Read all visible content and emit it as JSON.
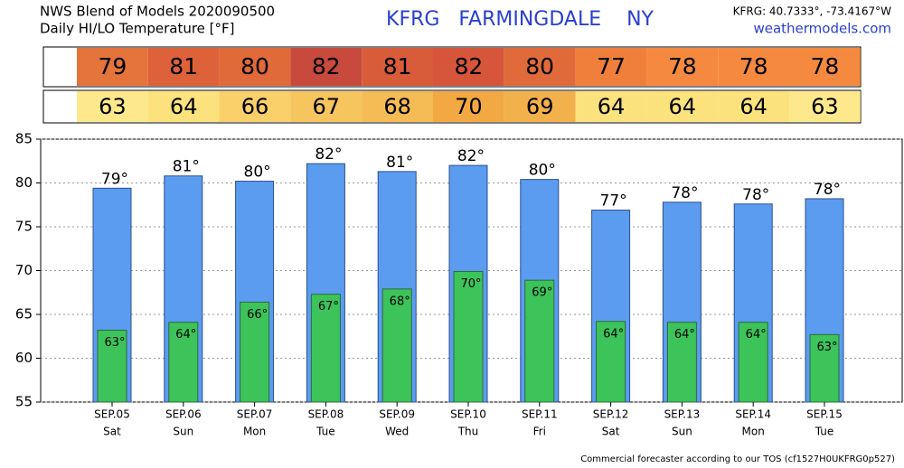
{
  "header": {
    "title": "NWS Blend of Models 2020090500",
    "subtitle": "Daily HI/LO Temperature [°F]",
    "station": "KFRG   FARMINGDALE    NY",
    "coords": "KFRG: 40.7333°, -73.4167°W",
    "site": "weathermodels.com"
  },
  "hi_row": {
    "values": [
      79,
      81,
      80,
      82,
      81,
      82,
      80,
      77,
      78,
      78,
      78
    ],
    "colors": [
      "#e4733c",
      "#dd6239",
      "#e06a3a",
      "#c84a3c",
      "#d85c3a",
      "#d5563a",
      "#e06a3a",
      "#f07f3c",
      "#f5893f",
      "#f5893f",
      "#f5893f"
    ]
  },
  "lo_row": {
    "values": [
      63,
      64,
      66,
      67,
      68,
      70,
      69,
      64,
      64,
      64,
      63
    ],
    "colors": [
      "#fde98c",
      "#fbe27c",
      "#f9d06a",
      "#f7c55e",
      "#f5bb55",
      "#f2a843",
      "#f3b14c",
      "#fbe27c",
      "#fbe27c",
      "#fbe27c",
      "#fde98c"
    ]
  },
  "chart_data": {
    "type": "bar",
    "categories": [
      "SEP.05",
      "SEP.06",
      "SEP.07",
      "SEP.08",
      "SEP.09",
      "SEP.10",
      "SEP.11",
      "SEP.12",
      "SEP.13",
      "SEP.14",
      "SEP.15"
    ],
    "weekdays": [
      "Sat",
      "Sun",
      "Mon",
      "Tue",
      "Wed",
      "Thu",
      "Fri",
      "Sat",
      "Sun",
      "Mon",
      "Tue"
    ],
    "series": [
      {
        "name": "HI",
        "color": "#5b9cf0",
        "values": [
          79.4,
          80.8,
          80.2,
          82.2,
          81.3,
          82.0,
          80.4,
          76.9,
          77.8,
          77.6,
          78.2
        ],
        "value_labels": [
          "79°",
          "81°",
          "80°",
          "82°",
          "81°",
          "82°",
          "80°",
          "77°",
          "78°",
          "78°",
          "78°"
        ]
      },
      {
        "name": "LO",
        "color": "#3cc35a",
        "values": [
          63.2,
          64.1,
          66.4,
          67.3,
          67.9,
          69.9,
          68.9,
          64.2,
          64.1,
          64.1,
          62.7
        ],
        "value_labels": [
          "63°",
          "64°",
          "66°",
          "67°",
          "68°",
          "70°",
          "69°",
          "64°",
          "64°",
          "64°",
          "63°"
        ]
      }
    ],
    "ylim": [
      55,
      85
    ],
    "yticks": [
      55,
      60,
      65,
      70,
      75,
      80,
      85
    ],
    "grid": true
  },
  "footer": "Commercial forecaster according to our TOS (cf1527H0UKFRG0p527)"
}
